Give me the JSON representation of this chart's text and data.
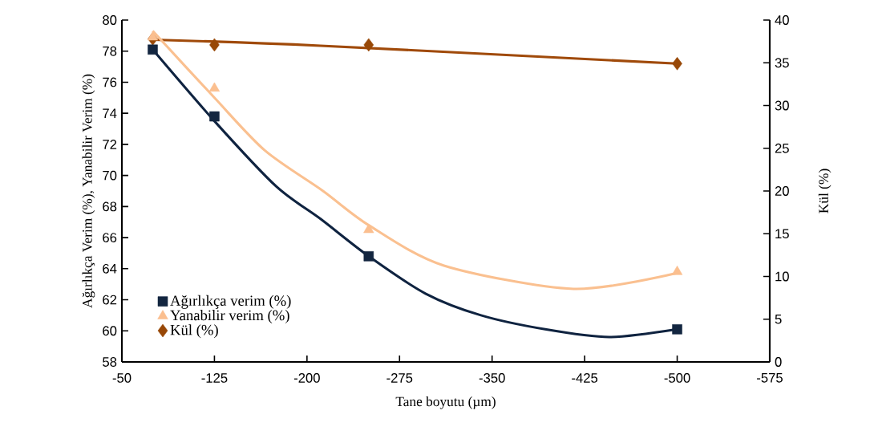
{
  "chart_data": {
    "type": "line",
    "xlabel": "Tane boyutu (µm)",
    "ylabel": "Ağırlıkça Verim (%),  Yanabilir Verim (%)",
    "y2label": "Kül (%)",
    "xlim": [
      -50,
      -575
    ],
    "xticks": [
      -50,
      -125,
      -200,
      -275,
      -350,
      -425,
      -500,
      -575
    ],
    "ylim": [
      58,
      80
    ],
    "yticks": [
      58,
      60,
      62,
      64,
      66,
      68,
      70,
      72,
      74,
      76,
      78,
      80
    ],
    "y2lim": [
      0,
      40
    ],
    "y2ticks": [
      0,
      5,
      10,
      15,
      20,
      25,
      30,
      35,
      40
    ],
    "legend": "bottom left",
    "grid": false,
    "series": [
      {
        "marker": "none",
        "color": "#fac090",
        "x": [
          -75,
          -125,
          -166,
          -213,
          -250,
          -311,
          -416,
          -499
        ],
        "values": [
          79.3,
          75.0,
          71.6,
          69.0,
          66.8,
          64.2,
          62.7,
          63.7
        ]
      },
      {
        "marker": "none",
        "color": "#0f2340",
        "x": [
          -75,
          -125,
          -175,
          -211,
          -250,
          -296,
          -341,
          -393,
          -445,
          -500
        ],
        "values": [
          78.1,
          73.5,
          69.3,
          67.2,
          64.8,
          62.4,
          61.0,
          60.1,
          59.6,
          60.1
        ]
      },
      {
        "marker": "none",
        "axis": "y2",
        "color": "#a04a0a",
        "x": [
          -75,
          -211,
          -500
        ],
        "values": [
          37.7,
          37.0,
          34.9
        ]
      },
      {
        "name": "Ağırlıkça verim (%)",
        "type": "scatter",
        "marker": "square",
        "color": "#132640",
        "x": [
          -75,
          -125,
          -250,
          -500
        ],
        "values": [
          78.1,
          73.8,
          64.8,
          60.1
        ]
      },
      {
        "name": "Yanabilir verim (%)",
        "type": "scatter",
        "marker": "triangle",
        "color": "#fbbf8f",
        "x": [
          -75,
          -125,
          -250,
          -500
        ],
        "values": [
          78.9,
          75.6,
          66.5,
          63.8
        ]
      },
      {
        "name": "Kül (%)",
        "type": "scatter",
        "marker": "diamond",
        "axis": "y2",
        "color": "#984807",
        "x": [
          -75,
          -125,
          -250,
          -500
        ],
        "values": [
          37.8,
          37.1,
          37.1,
          34.9
        ]
      }
    ]
  }
}
